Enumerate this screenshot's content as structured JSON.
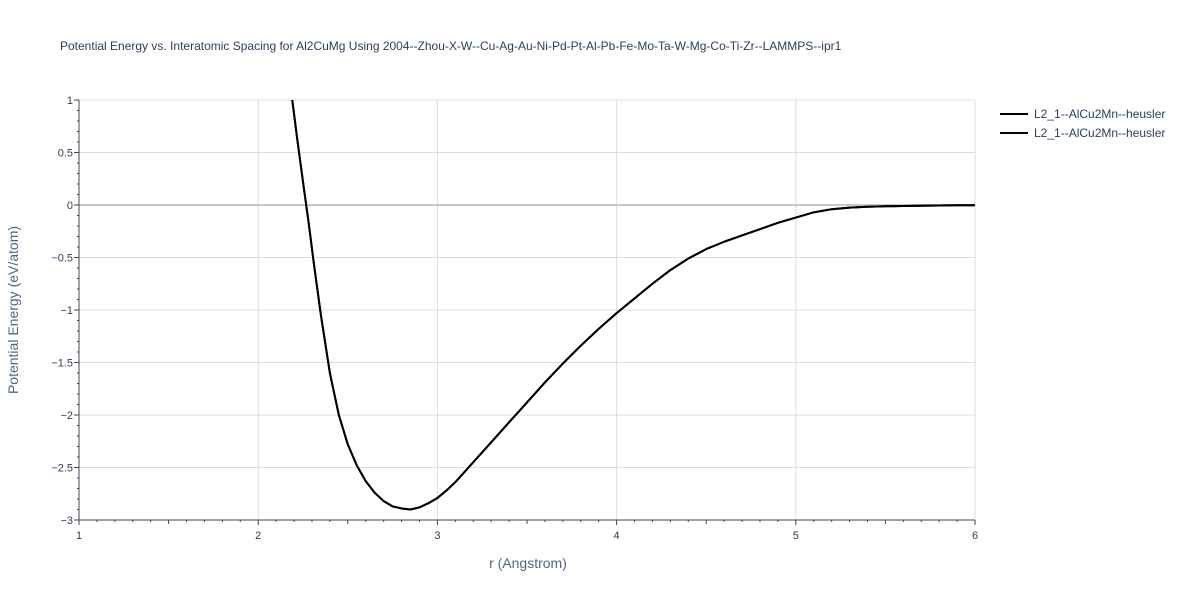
{
  "chart_data": {
    "type": "line",
    "title": "Potential Energy vs. Interatomic Spacing for Al2CuMg Using 2004--Zhou-X-W--Cu-Ag-Au-Ni-Pd-Pt-Al-Pb-Fe-Mo-Ta-W-Mg-Co-Ti-Zr--LAMMPS--ipr1",
    "xlabel": "r (Angstrom)",
    "ylabel": "Potential Energy (eV/atom)",
    "xlim": [
      1,
      6
    ],
    "ylim": [
      -3,
      1
    ],
    "xticks": [
      1,
      2,
      3,
      4,
      5,
      6
    ],
    "xtick_labels": [
      "1",
      "2",
      "3",
      "4",
      "5",
      "6"
    ],
    "yticks": [
      1,
      0.5,
      0,
      -0.5,
      -1,
      -1.5,
      -2,
      -2.5,
      -3
    ],
    "ytick_labels": [
      "1",
      "0.5",
      "0",
      "−0.5",
      "−1",
      "−1.5",
      "−2",
      "−2.5",
      "−3"
    ],
    "grid": true,
    "legend_position": "top-right",
    "series": [
      {
        "name": "L2_1--AlCu2Mn--heusler",
        "color": "#000000",
        "x": [
          2.19,
          2.22,
          2.25,
          2.28,
          2.31,
          2.35,
          2.4,
          2.45,
          2.5,
          2.55,
          2.6,
          2.65,
          2.7,
          2.75,
          2.8,
          2.85,
          2.9,
          2.95,
          3.0,
          3.05,
          3.1,
          3.2,
          3.3,
          3.4,
          3.5,
          3.6,
          3.7,
          3.8,
          3.9,
          4.0,
          4.1,
          4.2,
          4.3,
          4.4,
          4.5,
          4.6,
          4.7,
          4.8,
          4.9,
          5.0,
          5.1,
          5.2,
          5.3,
          5.4,
          5.5,
          5.6,
          5.7,
          5.8,
          5.9,
          6.0
        ],
        "y": [
          1.0,
          0.6,
          0.22,
          -0.15,
          -0.55,
          -1.05,
          -1.6,
          -2.0,
          -2.28,
          -2.48,
          -2.63,
          -2.74,
          -2.82,
          -2.87,
          -2.89,
          -2.9,
          -2.88,
          -2.84,
          -2.79,
          -2.72,
          -2.64,
          -2.45,
          -2.26,
          -2.07,
          -1.88,
          -1.69,
          -1.51,
          -1.34,
          -1.18,
          -1.03,
          -0.89,
          -0.75,
          -0.62,
          -0.51,
          -0.42,
          -0.35,
          -0.29,
          -0.23,
          -0.17,
          -0.12,
          -0.07,
          -0.04,
          -0.025,
          -0.017,
          -0.012,
          -0.009,
          -0.007,
          -0.005,
          -0.003,
          -0.002
        ]
      },
      {
        "name": "L2_1--AlCu2Mn--heusler",
        "color": "#000000",
        "x": [
          2.19,
          2.22,
          2.25,
          2.28,
          2.31,
          2.35,
          2.4,
          2.45,
          2.5,
          2.55,
          2.6,
          2.65,
          2.7,
          2.75,
          2.8,
          2.85,
          2.9,
          2.95,
          3.0,
          3.05,
          3.1,
          3.2,
          3.3,
          3.4,
          3.5,
          3.6,
          3.7,
          3.8,
          3.9,
          4.0,
          4.1,
          4.2,
          4.3,
          4.4,
          4.5,
          4.6,
          4.7,
          4.8,
          4.9,
          5.0,
          5.1,
          5.2,
          5.3,
          5.4,
          5.5,
          5.6,
          5.7,
          5.8,
          5.9,
          6.0
        ],
        "y": [
          1.0,
          0.6,
          0.22,
          -0.15,
          -0.55,
          -1.05,
          -1.6,
          -2.0,
          -2.28,
          -2.48,
          -2.63,
          -2.74,
          -2.82,
          -2.87,
          -2.89,
          -2.9,
          -2.88,
          -2.84,
          -2.79,
          -2.72,
          -2.64,
          -2.45,
          -2.26,
          -2.07,
          -1.88,
          -1.69,
          -1.51,
          -1.34,
          -1.18,
          -1.03,
          -0.89,
          -0.75,
          -0.62,
          -0.51,
          -0.42,
          -0.35,
          -0.29,
          -0.23,
          -0.17,
          -0.12,
          -0.07,
          -0.04,
          -0.025,
          -0.017,
          -0.012,
          -0.009,
          -0.007,
          -0.005,
          -0.003,
          -0.002
        ]
      }
    ]
  }
}
